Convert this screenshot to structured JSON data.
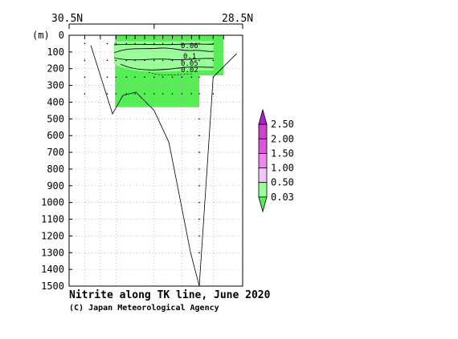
{
  "chart_data": {
    "type": "heatmap",
    "title": "Nitrite along TK line, June 2020",
    "credit": "(C) Japan Meteorological Agency",
    "ylabel": "(m)",
    "x_start_label": "30.5N",
    "x_end_label": "28.5N",
    "xlim": [
      30.5,
      28.5
    ],
    "ylim": [
      0,
      1500
    ],
    "y_ticks": [
      0,
      100,
      200,
      300,
      400,
      500,
      600,
      700,
      800,
      900,
      1000,
      1100,
      1200,
      1300,
      1400,
      1500
    ],
    "grid": true,
    "colorbar": {
      "levels": [
        "0.03",
        "0.50",
        "1.00",
        "1.50",
        "2.00",
        "2.50"
      ],
      "colors": [
        "#55ee55",
        "#99ff99",
        "#f0c8f8",
        "#ee88ee",
        "#dd55dd",
        "#cc44cc",
        "#aa22cc"
      ]
    },
    "contour_labels": [
      "0.06",
      "0.1",
      "0.05",
      "0.02"
    ],
    "stations_lat": [
      30.32,
      30.06,
      29.96,
      29.84,
      29.74,
      29.63,
      29.52,
      29.42,
      29.31,
      29.2,
      29.09,
      29.0,
      28.84
    ],
    "bottom_depth_profile": {
      "lat": [
        30.25,
        30.0,
        29.88,
        29.73,
        29.52,
        29.35,
        29.1,
        29.0,
        28.84,
        28.57
      ],
      "depth": [
        60,
        470,
        360,
        340,
        450,
        640,
        1300,
        1500,
        250,
        110
      ]
    },
    "filled_regions": [
      {
        "level": "0.03-0.50",
        "lat_range": [
          29.97,
          29.0
        ],
        "depth_range": [
          0,
          430
        ]
      },
      {
        "level": "0.03-0.50",
        "lat_range": [
          29.0,
          28.72
        ],
        "depth_range": [
          0,
          240
        ]
      }
    ]
  }
}
